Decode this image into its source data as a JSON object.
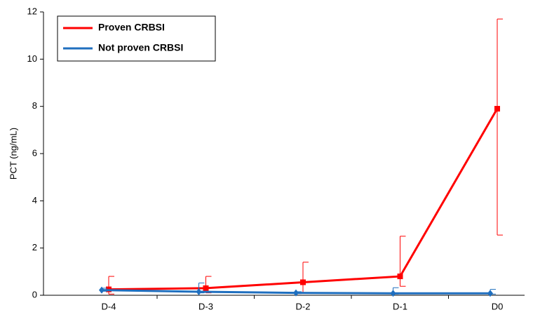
{
  "chart_data": {
    "type": "line",
    "y_label": "PCT (ng/mL)",
    "categories": [
      "D-4",
      "D-3",
      "D-2",
      "D-1",
      "D0"
    ],
    "series": [
      {
        "name": "Proven CRBSI",
        "color": "#ff0000",
        "marker": "square",
        "values": [
          0.25,
          0.3,
          0.55,
          0.8,
          7.9
        ],
        "error_upper": [
          0.55,
          0.5,
          0.85,
          1.7,
          3.8
        ],
        "error_lower": [
          0.2,
          0.2,
          0.45,
          0.42,
          5.35
        ]
      },
      {
        "name": "Not proven CRBSI",
        "color": "#1f6fbf",
        "marker": "diamond",
        "values": [
          0.22,
          0.15,
          0.1,
          0.08,
          0.08
        ],
        "error_upper": [
          0.08,
          0.37,
          0.05,
          0.24,
          0.17
        ],
        "error_lower": [
          0.05,
          0.05,
          0.03,
          0.03,
          0.03
        ]
      }
    ],
    "ylim": [
      0,
      12
    ],
    "yticks": [
      0,
      2,
      4,
      6,
      8,
      10,
      12
    ],
    "legend": "upper-left"
  }
}
